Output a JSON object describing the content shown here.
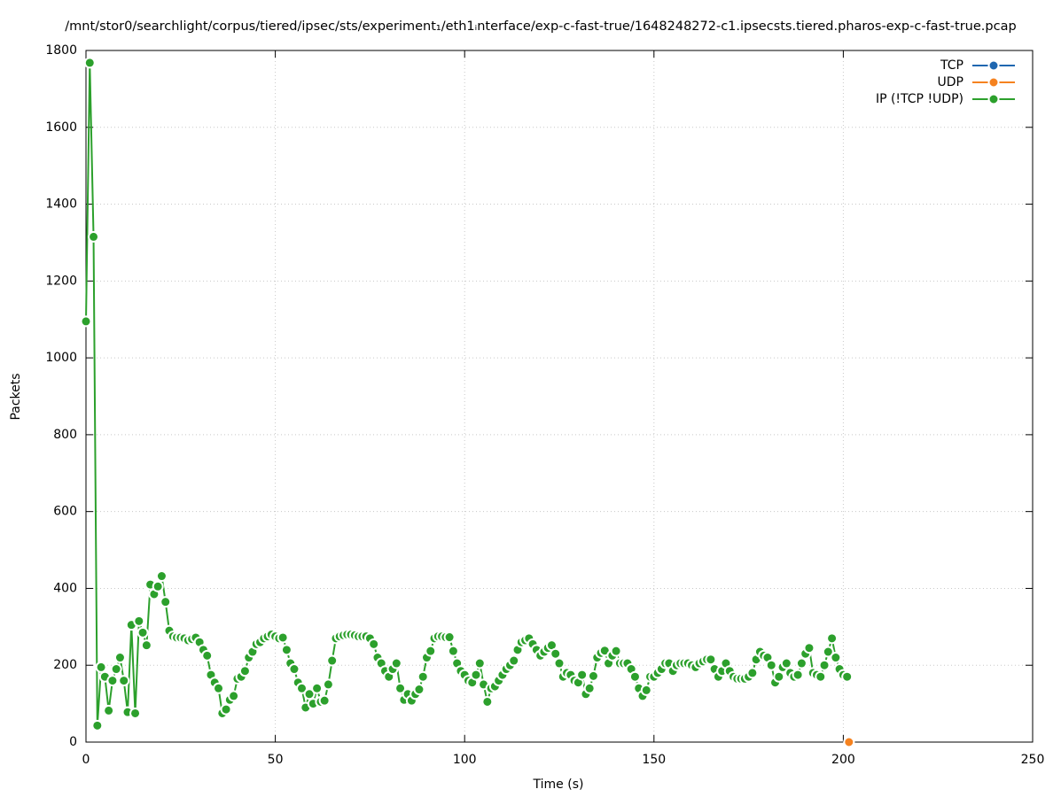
{
  "chart_data": {
    "type": "line",
    "title": "/mnt/stor0/searchlight/corpus/tiered/ipsec/sts/experiment₁/eth1ᵢnterface/exp-c-fast-true/1648248272-c1.ipsecsts.tiered.pharos-exp-c-fast-true.pcap",
    "xlabel": "Time (s)",
    "ylabel": "Packets",
    "xlim": [
      0,
      250
    ],
    "xticks": [
      0,
      50,
      100,
      150,
      200,
      250
    ],
    "ylim": [
      0,
      1800
    ],
    "yticks": [
      0,
      200,
      400,
      600,
      800,
      1000,
      1200,
      1400,
      1600,
      1800
    ],
    "grid": true,
    "legend": "top right",
    "series": [
      {
        "name": "TCP",
        "color": "#1f67b0",
        "x": [
          201.5
        ],
        "values": [
          0
        ]
      },
      {
        "name": "UDP",
        "color": "#f5821f",
        "x": [
          201.5
        ],
        "values": [
          0
        ]
      },
      {
        "name": "IP (!TCP  !UDP)",
        "color": "#2ca02c",
        "x": [
          0,
          1,
          2,
          3,
          4,
          5,
          6,
          7,
          8,
          9,
          10,
          11,
          12,
          13,
          14,
          15,
          16,
          17,
          18,
          19,
          20,
          21,
          22,
          23,
          24,
          25,
          26,
          27,
          28,
          29,
          30,
          31,
          32,
          33,
          34,
          35,
          36,
          37,
          38,
          39,
          40,
          41,
          42,
          43,
          44,
          45,
          46,
          47,
          48,
          49,
          50,
          51,
          52,
          53,
          54,
          55,
          56,
          57,
          58,
          59,
          60,
          61,
          62,
          63,
          64,
          65,
          66,
          67,
          68,
          69,
          70,
          71,
          72,
          73,
          74,
          75,
          76,
          77,
          78,
          79,
          80,
          81,
          82,
          83,
          84,
          85,
          86,
          87,
          88,
          89,
          90,
          91,
          92,
          93,
          94,
          95,
          96,
          97,
          98,
          99,
          100,
          101,
          102,
          103,
          104,
          105,
          106,
          107,
          108,
          109,
          110,
          111,
          112,
          113,
          114,
          115,
          116,
          117,
          118,
          119,
          120,
          121,
          122,
          123,
          124,
          125,
          126,
          127,
          128,
          129,
          130,
          131,
          132,
          133,
          134,
          135,
          136,
          137,
          138,
          139,
          140,
          141,
          142,
          143,
          144,
          145,
          146,
          147,
          148,
          149,
          150,
          151,
          152,
          153,
          154,
          155,
          156,
          157,
          158,
          159,
          160,
          161,
          162,
          163,
          164,
          165,
          166,
          167,
          168,
          169,
          170,
          171,
          172,
          173,
          174,
          175,
          176,
          177,
          178,
          179,
          180,
          181,
          182,
          183,
          184,
          185,
          186,
          187,
          188,
          189,
          190,
          191,
          192,
          193,
          194,
          195,
          196,
          197,
          198,
          199,
          200,
          201
        ],
        "values": [
          1095,
          1768,
          1315,
          43,
          195,
          170,
          82,
          160,
          190,
          220,
          160,
          78,
          305,
          75,
          315,
          285,
          252,
          410,
          385,
          405,
          432,
          365,
          290,
          275,
          272,
          272,
          270,
          265,
          268,
          272,
          260,
          240,
          225,
          175,
          155,
          140,
          75,
          85,
          110,
          120,
          165,
          170,
          185,
          220,
          235,
          255,
          260,
          270,
          275,
          280,
          275,
          270,
          272,
          240,
          205,
          190,
          155,
          140,
          90,
          125,
          100,
          140,
          105,
          108,
          150,
          212,
          270,
          275,
          278,
          280,
          280,
          278,
          275,
          275,
          275,
          270,
          255,
          220,
          205,
          185,
          170,
          190,
          205,
          140,
          110,
          125,
          108,
          125,
          137,
          170,
          220,
          237,
          270,
          275,
          275,
          273,
          273,
          237,
          205,
          185,
          175,
          160,
          155,
          175,
          205,
          150,
          105,
          140,
          145,
          160,
          175,
          190,
          200,
          212,
          240,
          260,
          265,
          270,
          255,
          240,
          225,
          235,
          245,
          252,
          230,
          205,
          170,
          180,
          175,
          160,
          155,
          175,
          125,
          140,
          172,
          220,
          232,
          238,
          205,
          225,
          237,
          205,
          205,
          205,
          190,
          170,
          140,
          120,
          135,
          170,
          170,
          180,
          190,
          205,
          205,
          185,
          200,
          205,
          205,
          205,
          200,
          195,
          205,
          210,
          215,
          215,
          190,
          170,
          185,
          205,
          185,
          170,
          165,
          165,
          165,
          170,
          180,
          215,
          235,
          225,
          220,
          200,
          155,
          170,
          195,
          205,
          180,
          170,
          175,
          205,
          230,
          245,
          180,
          175,
          170,
          200,
          235,
          270,
          220,
          190,
          175,
          170
        ]
      }
    ]
  }
}
